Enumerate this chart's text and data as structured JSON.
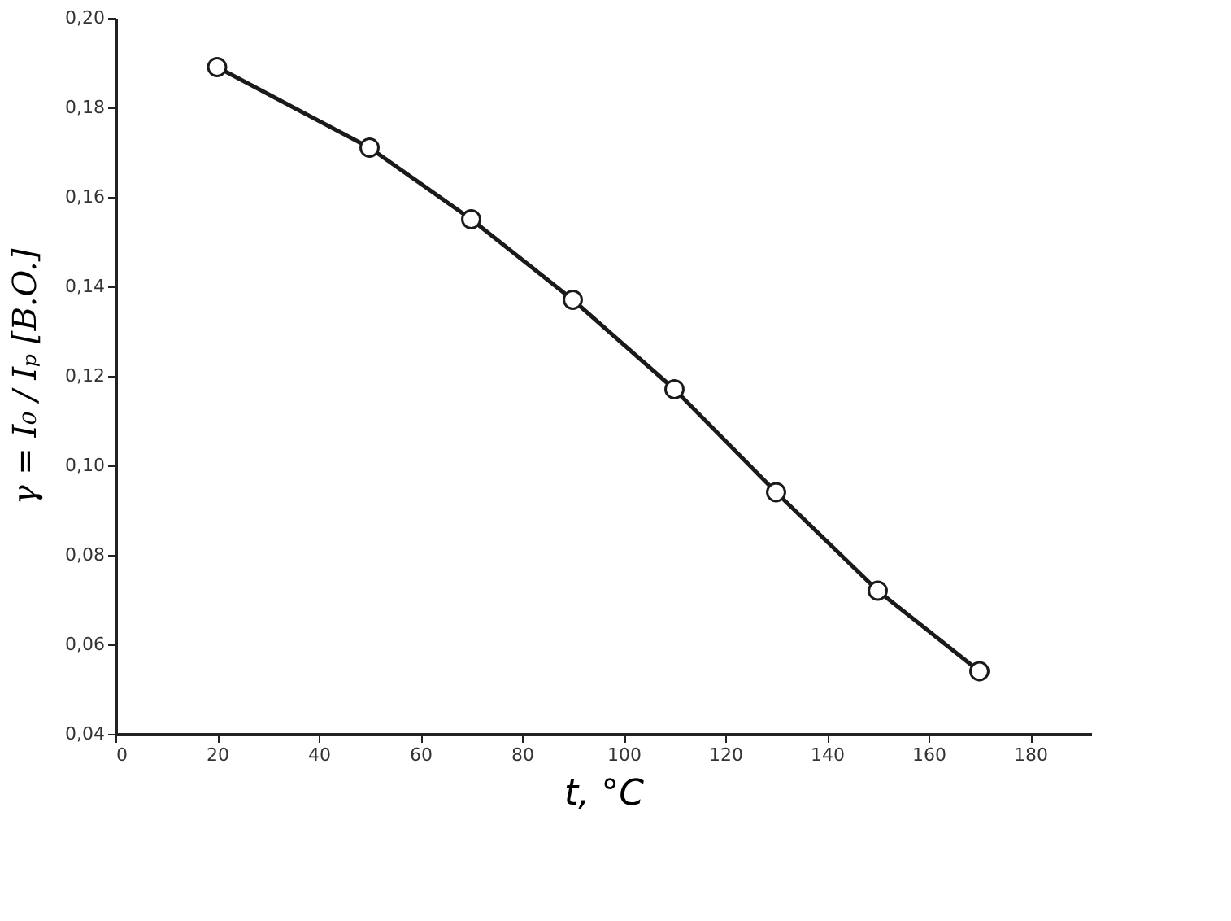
{
  "chart_data": {
    "type": "line",
    "xlabel": "t, °C",
    "ylabel": "γ = I₀ / Iₚ [B.O.]",
    "x": [
      20,
      50,
      70,
      90,
      110,
      130,
      150,
      170
    ],
    "series": [
      {
        "color": "#1a1a1a",
        "values": [
          0.189,
          0.171,
          0.155,
          0.137,
          0.117,
          0.094,
          0.072,
          0.054
        ]
      }
    ],
    "xlim": [
      0,
      192
    ],
    "xticks": [
      0,
      20,
      40,
      60,
      80,
      100,
      120,
      140,
      160,
      180
    ],
    "ylim": [
      0.04,
      0.2
    ],
    "yticks": [
      {
        "value": 0.04,
        "label": "0,04"
      },
      {
        "value": 0.06,
        "label": "0,06"
      },
      {
        "value": 0.08,
        "label": "0,08"
      },
      {
        "value": 0.1,
        "label": "0,10"
      },
      {
        "value": 0.12,
        "label": "0,12"
      },
      {
        "value": 0.14,
        "label": "0,14"
      },
      {
        "value": 0.16,
        "label": "0,16"
      },
      {
        "value": 0.18,
        "label": "0,18"
      },
      {
        "value": 0.2,
        "label": "0,20"
      }
    ],
    "grid": false,
    "marker": "circle",
    "line_style": "solid"
  }
}
